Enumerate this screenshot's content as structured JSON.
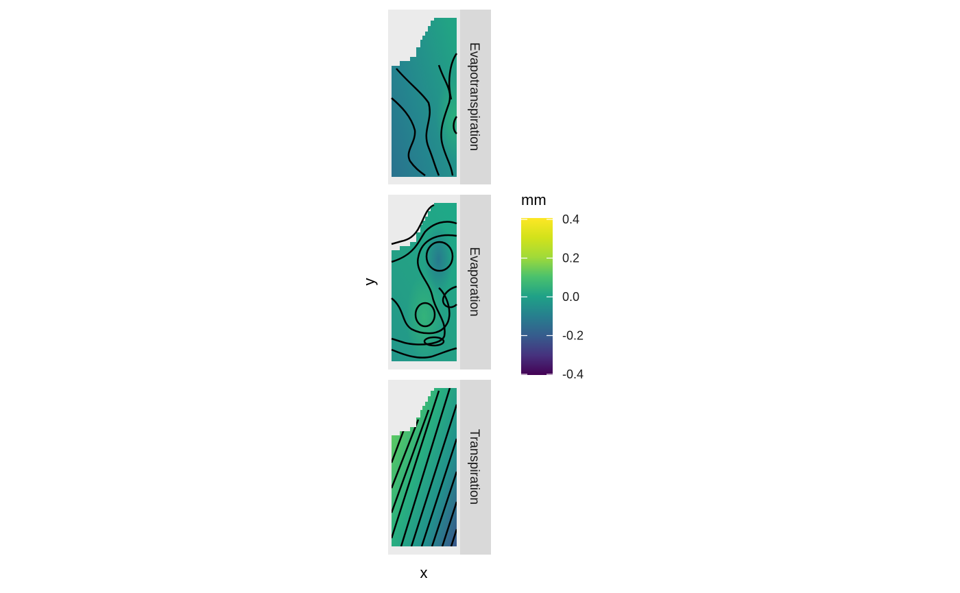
{
  "chart_data": {
    "type": "heatmap",
    "description_type": "faceted raster with contour lines",
    "xlabel": "x",
    "ylabel": "y",
    "legend": {
      "title": "mm",
      "colormap": "viridis",
      "limits": [
        -0.4,
        0.4
      ],
      "ticks": [
        "0.4",
        "0.2",
        "0.0",
        "-0.2",
        "-0.4"
      ],
      "placement": "right"
    },
    "panel_background": "#EBEBEB",
    "strip_background": "#D9D9D9",
    "facets": [
      {
        "label": "Evapotranspiration",
        "value_range": [
          -0.05,
          0.13
        ],
        "gradient": "left-bottom low to right high",
        "contour_count": 5
      },
      {
        "label": "Evaporation",
        "value_range": [
          0.0,
          0.12
        ],
        "gradient": "mostly flat with local minima",
        "contour_count": 9
      },
      {
        "label": "Transpiration",
        "value_range": [
          -0.15,
          0.22
        ],
        "gradient": "diagonal, high top-left to low bottom-right",
        "contour_count": 10
      }
    ]
  }
}
